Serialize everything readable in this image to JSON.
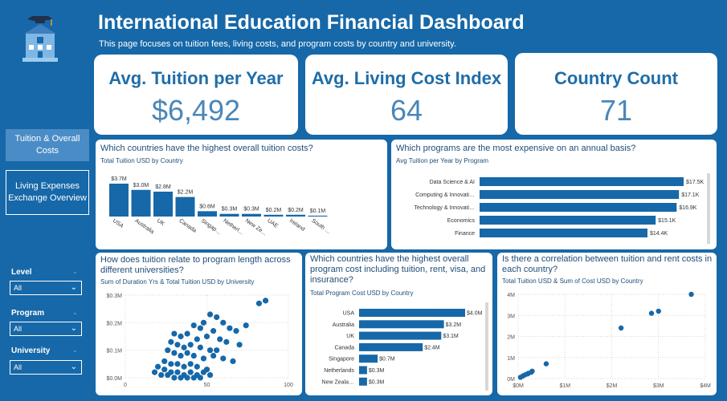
{
  "header": {
    "title": "International Education Financial Dashboard",
    "subtitle": "This page focuses on tuition fees, living costs, and program costs by country and university."
  },
  "colors": {
    "accent": "#1668a8",
    "bar": "#1668a8",
    "kpi_value": "#4a86b8"
  },
  "sidebar": {
    "nav": [
      {
        "label": "Tuition & Overall Costs",
        "active": true
      },
      {
        "label": "Living Expenses Exchange Overview",
        "active": false
      }
    ],
    "filters": [
      {
        "label": "Level",
        "value": "All"
      },
      {
        "label": "Program",
        "value": "All"
      },
      {
        "label": "University",
        "value": "All"
      }
    ]
  },
  "kpis": [
    {
      "title": "Avg. Tuition per  Year",
      "value": "$6,492"
    },
    {
      "title": "Avg. Living Cost Index",
      "value": "64"
    },
    {
      "title": "Country Count",
      "value": "71"
    }
  ],
  "panels": {
    "tuition_country": {
      "question": "Which countries have the highest overall tuition costs?",
      "subtitle": "Total Tuition USD by Country"
    },
    "program_cost": {
      "question": "Which programs are the most expensive on an annual basis?",
      "subtitle": "Avg Tuition per Year by Program"
    },
    "duration_scatter": {
      "question": "How does tuition relate to program length across different universities?",
      "subtitle": "Sum of Duration Yrs & Total Tuition USD by University"
    },
    "total_program": {
      "question": "Which countries have the highest overall program cost including tuition, rent, visa, and insurance?",
      "subtitle": "Total Program Cost USD by Country"
    },
    "rent_scatter": {
      "question": "Is there a correlation between tuition and rent costs in each country?",
      "subtitle": "Total Tuition USD & Sum of Cost USD by Country"
    }
  },
  "chart_data": [
    {
      "type": "bar",
      "categories": [
        "USA",
        "Australia",
        "UK",
        "Canada",
        "Singap…",
        "Netherl…",
        "New Ze…",
        "UAE",
        "Ireland",
        "South …"
      ],
      "values": [
        3.7,
        3.0,
        2.8,
        2.2,
        0.6,
        0.3,
        0.3,
        0.2,
        0.2,
        0.1
      ],
      "data_labels": [
        "$3.7M",
        "$3.0M",
        "$2.8M",
        "$2.2M",
        "$0.6M",
        "$0.3M",
        "$0.3M",
        "$0.2M",
        "$0.2M",
        "$0.1M"
      ],
      "unit": "M USD"
    },
    {
      "type": "bar",
      "orientation": "horizontal",
      "categories": [
        "Data Science & AI",
        "Computing & Innovati…",
        "Technology & Innovati…",
        "Economics",
        "Finance"
      ],
      "values": [
        17.5,
        17.1,
        16.9,
        15.1,
        14.4
      ],
      "data_labels": [
        "$17.5K",
        "$17.1K",
        "$16.9K",
        "$15.1K",
        "$14.4K"
      ],
      "unit": "K USD"
    },
    {
      "type": "scatter",
      "xlim": [
        0,
        100
      ],
      "ylim": [
        0,
        0.3
      ],
      "x_ticks": [
        "0",
        "50",
        "100"
      ],
      "y_ticks": [
        "$0.0M",
        "$0.1M",
        "$0.2M",
        "$0.3M"
      ],
      "points": [
        [
          82,
          0.27
        ],
        [
          86,
          0.28
        ],
        [
          52,
          0.23
        ],
        [
          56,
          0.22
        ],
        [
          48,
          0.2
        ],
        [
          60,
          0.2
        ],
        [
          42,
          0.19
        ],
        [
          46,
          0.18
        ],
        [
          54,
          0.17
        ],
        [
          64,
          0.18
        ],
        [
          68,
          0.17
        ],
        [
          74,
          0.19
        ],
        [
          30,
          0.16
        ],
        [
          34,
          0.15
        ],
        [
          38,
          0.16
        ],
        [
          44,
          0.14
        ],
        [
          50,
          0.15
        ],
        [
          58,
          0.14
        ],
        [
          62,
          0.13
        ],
        [
          70,
          0.12
        ],
        [
          28,
          0.13
        ],
        [
          32,
          0.12
        ],
        [
          36,
          0.11
        ],
        [
          40,
          0.12
        ],
        [
          46,
          0.11
        ],
        [
          52,
          0.1
        ],
        [
          56,
          0.1
        ],
        [
          26,
          0.1
        ],
        [
          30,
          0.09
        ],
        [
          34,
          0.08
        ],
        [
          38,
          0.09
        ],
        [
          42,
          0.08
        ],
        [
          48,
          0.07
        ],
        [
          54,
          0.08
        ],
        [
          60,
          0.07
        ],
        [
          66,
          0.06
        ],
        [
          24,
          0.06
        ],
        [
          28,
          0.05
        ],
        [
          32,
          0.05
        ],
        [
          36,
          0.04
        ],
        [
          40,
          0.05
        ],
        [
          44,
          0.04
        ],
        [
          50,
          0.03
        ],
        [
          20,
          0.04
        ],
        [
          24,
          0.03
        ],
        [
          28,
          0.02
        ],
        [
          32,
          0.02
        ],
        [
          36,
          0.01
        ],
        [
          40,
          0.02
        ],
        [
          44,
          0.01
        ],
        [
          48,
          0.02
        ],
        [
          52,
          0.01
        ],
        [
          18,
          0.02
        ],
        [
          22,
          0.01
        ],
        [
          26,
          0.01
        ],
        [
          30,
          0.0
        ],
        [
          34,
          0.0
        ],
        [
          38,
          0.0
        ],
        [
          42,
          0.0
        ],
        [
          46,
          0.0
        ]
      ]
    },
    {
      "type": "bar",
      "orientation": "horizontal",
      "categories": [
        "USA",
        "Australia",
        "UK",
        "Canada",
        "Singapore",
        "Netherlands",
        "New Zeala…"
      ],
      "values": [
        4.0,
        3.2,
        3.1,
        2.4,
        0.7,
        0.3,
        0.3
      ],
      "data_labels": [
        "$4.0M",
        "$3.2M",
        "$3.1M",
        "$2.4M",
        "$0.7M",
        "$0.3M",
        "$0.3M"
      ],
      "unit": "M USD"
    },
    {
      "type": "scatter",
      "xlim": [
        0,
        4
      ],
      "ylim": [
        0,
        4
      ],
      "x_ticks": [
        "$0M",
        "$1M",
        "$2M",
        "$3M",
        "$4M"
      ],
      "y_ticks": [
        "0M",
        "1M",
        "2M",
        "3M",
        "4M"
      ],
      "points": [
        [
          3.7,
          4.0
        ],
        [
          3.0,
          3.2
        ],
        [
          2.85,
          3.1
        ],
        [
          2.2,
          2.4
        ],
        [
          0.6,
          0.7
        ],
        [
          0.3,
          0.35
        ],
        [
          0.28,
          0.3
        ],
        [
          0.22,
          0.25
        ],
        [
          0.2,
          0.22
        ],
        [
          0.15,
          0.18
        ],
        [
          0.1,
          0.12
        ],
        [
          0.05,
          0.06
        ]
      ]
    }
  ]
}
